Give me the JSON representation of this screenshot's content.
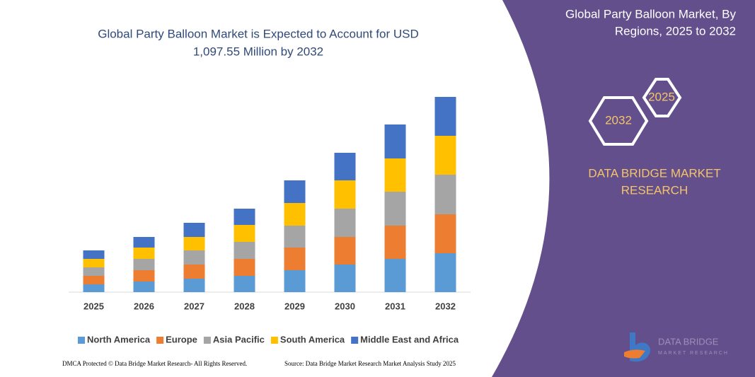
{
  "chart_data": {
    "type": "stacked_bar",
    "title": [
      "Global Party Balloon Market is Expected to Account for USD",
      "1,097.55 Million by 2032"
    ],
    "categories": [
      "2025",
      "2026",
      "2027",
      "2028",
      "2029",
      "2030",
      "2031",
      "2032"
    ],
    "series": [
      {
        "name": "North America",
        "color": "#5b9bd5",
        "values": [
          11,
          15,
          19,
          23,
          31,
          39,
          47,
          55
        ]
      },
      {
        "name": "Europe",
        "color": "#ed7d31",
        "values": [
          12,
          16,
          20,
          24,
          32,
          39,
          47,
          55
        ]
      },
      {
        "name": "Asia Pacific",
        "color": "#a5a5a5",
        "values": [
          12,
          16,
          20,
          24,
          31,
          40,
          48,
          56
        ]
      },
      {
        "name": "South America",
        "color": "#ffc000",
        "values": [
          12,
          16,
          19,
          24,
          32,
          40,
          47,
          55
        ]
      },
      {
        "name": "Middle East and Africa",
        "color": "#4472c4",
        "values": [
          12,
          15,
          20,
          23,
          32,
          39,
          48,
          55
        ]
      }
    ],
    "ylim": [
      0,
      276
    ],
    "grid": false
  },
  "panel": {
    "title": [
      "Global Party Balloon Market, By",
      "Regions, 2025 to 2032"
    ],
    "hexagons": [
      "2025",
      "2032"
    ],
    "brand": [
      "DATA BRIDGE MARKET",
      "RESEARCH"
    ],
    "logo": [
      "DATA BRIDGE",
      "MARKET RESEARCH"
    ]
  },
  "footer": {
    "dmca": "DMCA Protected © Data Bridge Market Research- All Rights Reserved.",
    "source": "Source: Data Bridge Market Research Market Analysis Study 2025"
  }
}
